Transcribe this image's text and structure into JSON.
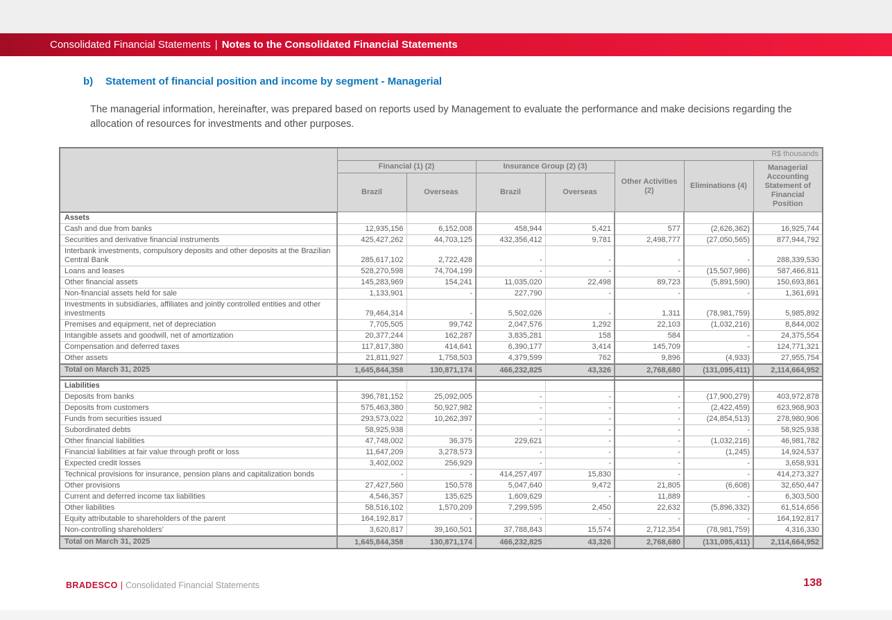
{
  "banner": {
    "prefix": "Consolidated Financial Statements",
    "separator": "|",
    "title": "Notes to the Consolidated Financial Statements"
  },
  "section_heading": {
    "marker": "b)",
    "text": "Statement of financial position and income by segment - Managerial"
  },
  "intro_paragraph": "The managerial information, hereinafter, was prepared based on reports used by Management to evaluate the performance and make decisions regarding the allocation of resources for investments and other purposes.",
  "table": {
    "unit_label": "R$ thousands",
    "column_groups": [
      {
        "label": "Financial (1) (2)",
        "span": 2
      },
      {
        "label": "Insurance Group (2) (3)",
        "span": 2
      }
    ],
    "sub_columns": [
      "Brazil",
      "Overseas",
      "Brazil",
      "Overseas"
    ],
    "single_columns": [
      "Other Activities (2)",
      "Eliminations (4)",
      "Managerial Accounting Statement of Financial Position"
    ],
    "sections": [
      {
        "title": "Assets",
        "rows": [
          {
            "label": "Cash and due from banks",
            "values": [
              "12,935,156",
              "6,152,008",
              "458,944",
              "5,421",
              "577",
              "(2,626,362)",
              "16,925,744"
            ]
          },
          {
            "label": "Securities and derivative financial instruments",
            "values": [
              "425,427,262",
              "44,703,125",
              "432,356,412",
              "9,781",
              "2,498,777",
              "(27,050,565)",
              "877,944,792"
            ]
          },
          {
            "label": "Interbank investments, compulsory deposits and other deposits at the Brazilian Central Bank",
            "values": [
              "285,617,102",
              "2,722,428",
              "-",
              "-",
              "-",
              "-",
              "288,339,530"
            ]
          },
          {
            "label": "Loans and leases",
            "values": [
              "528,270,598",
              "74,704,199",
              "-",
              "-",
              "-",
              "(15,507,986)",
              "587,466,811"
            ]
          },
          {
            "label": "Other financial assets",
            "values": [
              "145,283,969",
              "154,241",
              "11,035,020",
              "22,498",
              "89,723",
              "(5,891,590)",
              "150,693,861"
            ]
          },
          {
            "label": "Non-financial assets held for sale",
            "values": [
              "1,133,901",
              "-",
              "227,790",
              "-",
              "-",
              "-",
              "1,361,691"
            ]
          },
          {
            "label": "Investments in subsidiaries, affiliates and jointly controlled entities and other investments",
            "values": [
              "79,464,314",
              "-",
              "5,502,026",
              "-",
              "1,311",
              "(78,981,759)",
              "5,985,892"
            ]
          },
          {
            "label": "Premises and equipment, net of depreciation",
            "values": [
              "7,705,505",
              "99,742",
              "2,047,576",
              "1,292",
              "22,103",
              "(1,032,216)",
              "8,844,002"
            ]
          },
          {
            "label": "Intangible assets and goodwill, net of amortization",
            "values": [
              "20,377,244",
              "162,287",
              "3,835,281",
              "158",
              "584",
              "-",
              "24,375,554"
            ]
          },
          {
            "label": "Compensation and deferred taxes",
            "values": [
              "117,817,380",
              "414,641",
              "6,390,177",
              "3,414",
              "145,709",
              "-",
              "124,771,321"
            ]
          },
          {
            "label": "Other assets",
            "values": [
              "21,811,927",
              "1,758,503",
              "4,379,599",
              "762",
              "9,896",
              "(4,933)",
              "27,955,754"
            ]
          }
        ],
        "total": {
          "label": "Total on March 31, 2025",
          "values": [
            "1,645,844,358",
            "130,871,174",
            "466,232,825",
            "43,326",
            "2,768,680",
            "(131,095,411)",
            "2,114,664,952"
          ]
        }
      },
      {
        "title": "Liabilities",
        "rows": [
          {
            "label": "Deposits from banks",
            "values": [
              "396,781,152",
              "25,092,005",
              "-",
              "-",
              "-",
              "(17,900,279)",
              "403,972,878"
            ]
          },
          {
            "label": "Deposits from customers",
            "values": [
              "575,463,380",
              "50,927,982",
              "-",
              "-",
              "-",
              "(2,422,459)",
              "623,968,903"
            ]
          },
          {
            "label": "Funds from securities issued",
            "values": [
              "293,573,022",
              "10,262,397",
              "-",
              "-",
              "-",
              "(24,854,513)",
              "278,980,906"
            ]
          },
          {
            "label": "Subordinated debts",
            "values": [
              "58,925,938",
              "-",
              "-",
              "-",
              "-",
              "-",
              "58,925,938"
            ]
          },
          {
            "label": "Other financial liabilities",
            "values": [
              "47,748,002",
              "36,375",
              "229,621",
              "-",
              "-",
              "(1,032,216)",
              "46,981,782"
            ]
          },
          {
            "label": "Financial liabilities at fair value through profit or loss",
            "values": [
              "11,647,209",
              "3,278,573",
              "-",
              "-",
              "-",
              "(1,245)",
              "14,924,537"
            ]
          },
          {
            "label": "Expected credit losses",
            "values": [
              "3,402,002",
              "256,929",
              "-",
              "-",
              "-",
              "-",
              "3,658,931"
            ]
          },
          {
            "label": "Technical provisions for insurance, pension plans and capitalization bonds",
            "values": [
              "-",
              "-",
              "414,257,497",
              "15,830",
              "-",
              "-",
              "414,273,327"
            ]
          },
          {
            "label": "Other provisions",
            "values": [
              "27,427,560",
              "150,578",
              "5,047,640",
              "9,472",
              "21,805",
              "(6,608)",
              "32,650,447"
            ]
          },
          {
            "label": "Current and deferred income tax liabilities",
            "values": [
              "4,546,357",
              "135,625",
              "1,609,629",
              "-",
              "11,889",
              "-",
              "6,303,500"
            ]
          },
          {
            "label": "Other liabilities",
            "values": [
              "58,516,102",
              "1,570,209",
              "7,299,595",
              "2,450",
              "22,632",
              "(5,896,332)",
              "61,514,656"
            ]
          },
          {
            "label": "Equity attributable to shareholders of the parent",
            "values": [
              "164,192,817",
              "-",
              "-",
              "-",
              "-",
              "-",
              "164,192,817"
            ]
          },
          {
            "label": "Non-controlling shareholders’",
            "values": [
              "3,620,817",
              "39,160,501",
              "37,788,843",
              "15,574",
              "2,712,354",
              "(78,981,759)",
              "4,316,330"
            ]
          }
        ],
        "total": {
          "label": "Total on March 31, 2025",
          "values": [
            "1,645,844,358",
            "130,871,174",
            "466,232,825",
            "43,326",
            "2,768,680",
            "(131,095,411)",
            "2,114,664,952"
          ]
        }
      }
    ]
  },
  "footer": {
    "brand": "BRADESCO",
    "separator": "|",
    "document_title": "Consolidated Financial Statements",
    "page_number": "138"
  },
  "colors": {
    "banner_red_dark": "#a30d24",
    "banner_red_bright": "#f21a3e",
    "heading_blue": "#0e76bb",
    "brand_red": "#c01334",
    "header_gray": "#d9d9d9"
  }
}
